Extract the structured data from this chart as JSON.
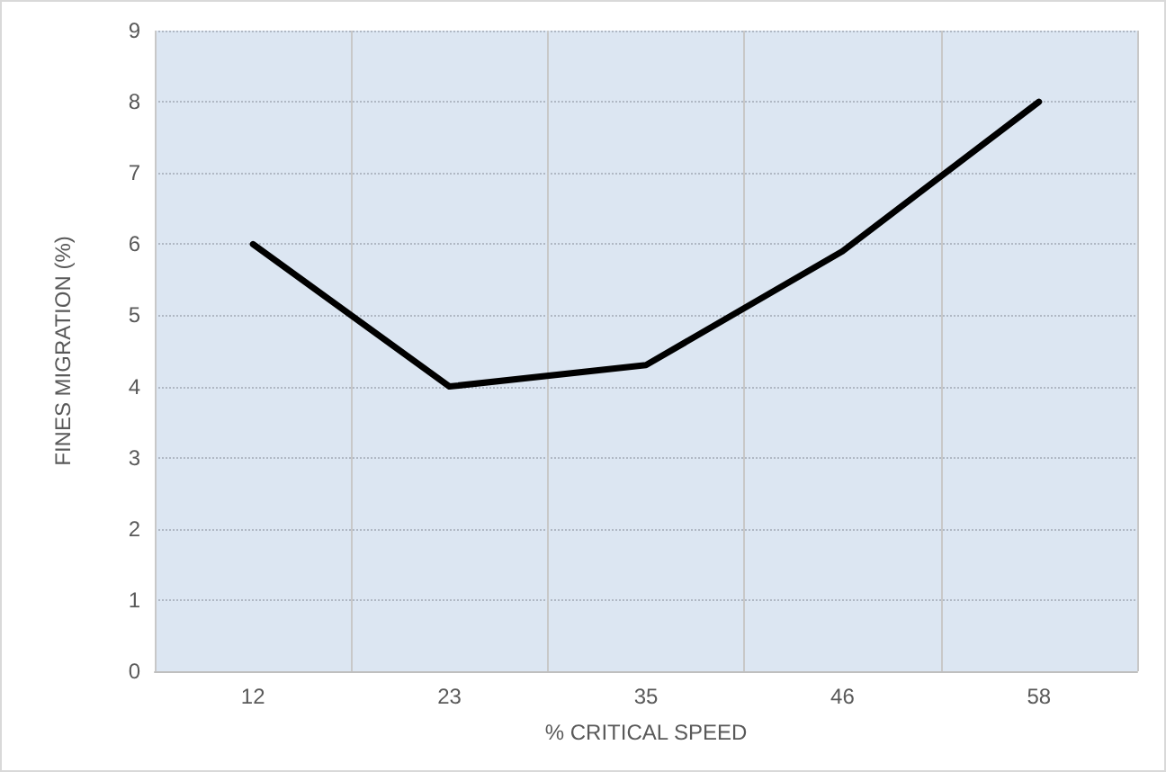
{
  "chart_data": {
    "type": "line",
    "xlabel": "% CRITICAL SPEED",
    "ylabel": "FINES MIGRATION (%)",
    "categories": [
      "12",
      "23",
      "35",
      "46",
      "58"
    ],
    "series": [
      {
        "color": "#000000",
        "values": [
          6,
          4,
          4.3,
          5.9,
          8
        ]
      }
    ],
    "ylim": [
      0,
      9
    ],
    "yticks": [
      0,
      1,
      2,
      3,
      4,
      5,
      6,
      7,
      8,
      9
    ],
    "grid": true,
    "marker": "none",
    "line_style": "solid"
  }
}
